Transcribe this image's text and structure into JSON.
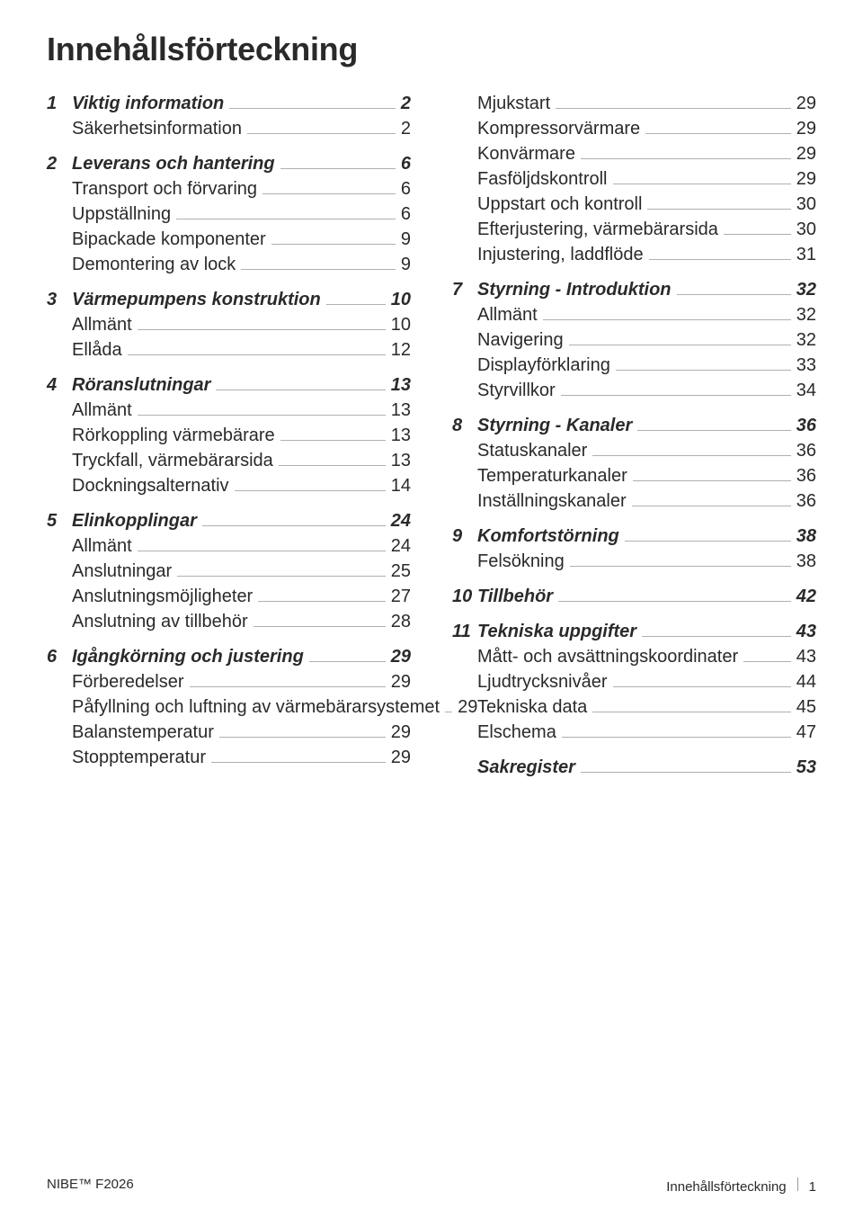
{
  "title": "Innehållsförteckning",
  "footer_left": "NIBE™ F2026",
  "footer_right_label": "Innehållsförteckning",
  "footer_page_number": "1",
  "left_column": [
    {
      "num": "1",
      "label": "Viktig information",
      "page": "2",
      "items": [
        {
          "label": "Säkerhetsinformation",
          "page": "2"
        }
      ]
    },
    {
      "num": "2",
      "label": "Leverans och hantering",
      "page": "6",
      "items": [
        {
          "label": "Transport och förvaring",
          "page": "6"
        },
        {
          "label": "Uppställning",
          "page": "6"
        },
        {
          "label": "Bipackade komponenter",
          "page": "9"
        },
        {
          "label": "Demontering av lock",
          "page": "9"
        }
      ]
    },
    {
      "num": "3",
      "label": "Värmepumpens konstruktion",
      "page": "10",
      "items": [
        {
          "label": "Allmänt",
          "page": "10"
        },
        {
          "label": "Ellåda",
          "page": "12"
        }
      ]
    },
    {
      "num": "4",
      "label": "Röranslutningar",
      "page": "13",
      "items": [
        {
          "label": "Allmänt",
          "page": "13"
        },
        {
          "label": "Rörkoppling värmebärare",
          "page": "13"
        },
        {
          "label": "Tryckfall, värmebärarsida",
          "page": "13"
        },
        {
          "label": "Dockningsalternativ",
          "page": "14"
        }
      ]
    },
    {
      "num": "5",
      "label": "Elinkopplingar",
      "page": "24",
      "items": [
        {
          "label": "Allmänt",
          "page": "24"
        },
        {
          "label": "Anslutningar",
          "page": "25"
        },
        {
          "label": "Anslutningsmöjligheter",
          "page": "27"
        },
        {
          "label": "Anslutning av tillbehör",
          "page": "28"
        }
      ]
    },
    {
      "num": "6",
      "label": "Igångkörning och justering",
      "page": "29",
      "items": [
        {
          "label": "Förberedelser",
          "page": "29"
        },
        {
          "label": "Påfyllning och luftning av värmebärarsystemet",
          "page": "29"
        },
        {
          "label": "Balanstemperatur",
          "page": "29"
        },
        {
          "label": "Stopptemperatur",
          "page": "29"
        }
      ]
    }
  ],
  "right_continuation": [
    {
      "label": "Mjukstart",
      "page": "29"
    },
    {
      "label": "Kompressorvärmare",
      "page": "29"
    },
    {
      "label": "Konvärmare",
      "page": "29"
    },
    {
      "label": "Fasföljdskontroll",
      "page": "29"
    },
    {
      "label": "Uppstart och kontroll",
      "page": "30"
    },
    {
      "label": "Efterjustering, värmebärarsida",
      "page": "30"
    },
    {
      "label": "Injustering, laddflöde",
      "page": "31"
    }
  ],
  "right_column": [
    {
      "num": "7",
      "label": "Styrning - Introduktion",
      "page": "32",
      "items": [
        {
          "label": "Allmänt",
          "page": "32"
        },
        {
          "label": "Navigering",
          "page": "32"
        },
        {
          "label": "Displayförklaring",
          "page": "33"
        },
        {
          "label": "Styrvillkor",
          "page": "34"
        }
      ]
    },
    {
      "num": "8",
      "label": "Styrning - Kanaler",
      "page": "36",
      "items": [
        {
          "label": "Statuskanaler",
          "page": "36"
        },
        {
          "label": "Temperaturkanaler",
          "page": "36"
        },
        {
          "label": "Inställningskanaler",
          "page": "36"
        }
      ]
    },
    {
      "num": "9",
      "label": "Komfortstörning",
      "page": "38",
      "items": [
        {
          "label": "Felsökning",
          "page": "38"
        }
      ]
    },
    {
      "num": "10",
      "label": "Tillbehör",
      "page": "42",
      "items": []
    },
    {
      "num": "11",
      "label": "Tekniska uppgifter",
      "page": "43",
      "items": [
        {
          "label": "Mått- och avsättningskoordinater",
          "page": "43"
        },
        {
          "label": "Ljudtrycksnivåer",
          "page": "44"
        },
        {
          "label": "Tekniska data",
          "page": "45"
        },
        {
          "label": "Elschema",
          "page": "47"
        }
      ]
    },
    {
      "num": "",
      "label": "Sakregister",
      "page": "53",
      "items": []
    }
  ]
}
